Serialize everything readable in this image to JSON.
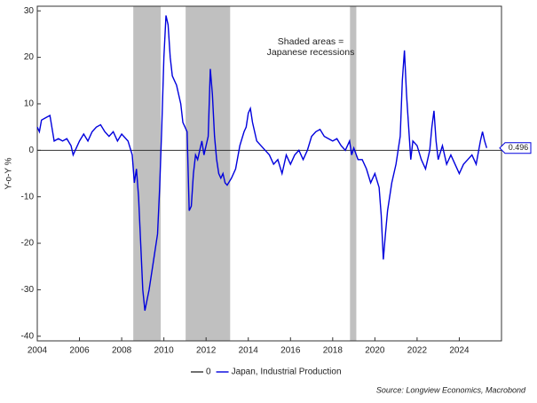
{
  "chart_data": {
    "type": "line",
    "ylabel": "Y-o-Y %",
    "annotation": [
      "Shaded areas =",
      "Japanese recessions"
    ],
    "source": "Source: Longview Economics, Macrobond",
    "shaded_regions": [
      [
        2008.55,
        2009.85
      ],
      [
        2011.03,
        2013.14
      ],
      [
        2018.82,
        2019.12
      ]
    ],
    "shade_color": "#c0c0c0",
    "xlim": [
      2004,
      2026
    ],
    "xticks": [
      2004,
      2006,
      2008,
      2010,
      2012,
      2014,
      2016,
      2018,
      2020,
      2022,
      2024
    ],
    "ylim": [
      -41,
      31
    ],
    "yticks": [
      -40,
      -30,
      -20,
      -10,
      0,
      10,
      20,
      30
    ],
    "series": [
      {
        "name": "0",
        "color": "#333333",
        "x": [
          2004,
          2026
        ],
        "values": [
          0,
          0
        ]
      },
      {
        "name": "Japan, Industrial Production",
        "color": "#0000dd",
        "x": [
          2004.0,
          2004.1,
          2004.2,
          2004.4,
          2004.6,
          2004.8,
          2005.0,
          2005.2,
          2005.4,
          2005.6,
          2005.7,
          2006.0,
          2006.2,
          2006.4,
          2006.6,
          2006.8,
          2007.0,
          2007.2,
          2007.4,
          2007.6,
          2007.8,
          2008.0,
          2008.3,
          2008.5,
          2008.6,
          2008.7,
          2008.8,
          2008.9,
          2009.0,
          2009.1,
          2009.3,
          2009.5,
          2009.7,
          2009.8,
          2009.9,
          2010.0,
          2010.1,
          2010.2,
          2010.3,
          2010.4,
          2010.6,
          2010.8,
          2010.9,
          2011.1,
          2011.2,
          2011.3,
          2011.4,
          2011.5,
          2011.6,
          2011.7,
          2011.8,
          2011.9,
          2012.0,
          2012.1,
          2012.2,
          2012.3,
          2012.4,
          2012.5,
          2012.6,
          2012.7,
          2012.8,
          2012.9,
          2013.0,
          2013.2,
          2013.4,
          2013.6,
          2013.8,
          2013.9,
          2014.0,
          2014.1,
          2014.2,
          2014.4,
          2014.6,
          2014.8,
          2015.0,
          2015.2,
          2015.4,
          2015.6,
          2015.8,
          2016.0,
          2016.2,
          2016.4,
          2016.6,
          2016.8,
          2017.0,
          2017.2,
          2017.4,
          2017.6,
          2017.8,
          2018.0,
          2018.2,
          2018.4,
          2018.6,
          2018.8,
          2018.9,
          2019.0,
          2019.2,
          2019.4,
          2019.6,
          2019.8,
          2020.0,
          2020.2,
          2020.3,
          2020.4,
          2020.5,
          2020.6,
          2020.8,
          2021.0,
          2021.2,
          2021.3,
          2021.4,
          2021.5,
          2021.7,
          2021.8,
          2022.0,
          2022.2,
          2022.4,
          2022.6,
          2022.7,
          2022.8,
          2022.9,
          2023.0,
          2023.2,
          2023.4,
          2023.6,
          2023.8,
          2024.0,
          2024.2,
          2024.4,
          2024.6,
          2024.8,
          2025.0,
          2025.1,
          2025.2,
          2025.3
        ],
        "values": [
          5,
          4,
          6.5,
          7,
          7.5,
          2,
          2.5,
          2,
          2.5,
          1,
          -1,
          2,
          3.5,
          2,
          4,
          5,
          5.5,
          4,
          3,
          4,
          2,
          3.5,
          2,
          -1,
          -7,
          -4,
          -10,
          -20,
          -30,
          -34.5,
          -30,
          -24,
          -18,
          -8,
          5,
          20,
          29,
          27,
          20,
          16,
          14,
          10,
          6,
          4,
          -13,
          -12,
          -5,
          -1,
          -2,
          0,
          2,
          -1,
          1,
          3,
          17.5,
          12,
          3,
          -2,
          -5,
          -6,
          -5,
          -7,
          -7.5,
          -6,
          -4,
          1,
          4,
          5,
          8,
          9,
          6,
          2,
          1,
          0,
          -1,
          -3,
          -2,
          -5,
          -1,
          -3,
          -1,
          0,
          -2,
          0,
          3,
          4,
          4.5,
          3,
          2.5,
          2,
          2.5,
          1,
          0,
          2,
          -1,
          0.5,
          -2,
          -2,
          -4,
          -7,
          -5,
          -8,
          -14,
          -23.5,
          -18,
          -13,
          -7,
          -3,
          3,
          15,
          21.5,
          12,
          -2,
          2,
          1,
          -2,
          -4,
          0,
          5,
          8.5,
          2,
          -2,
          1,
          -3,
          -1,
          -3,
          -5,
          -3,
          -2,
          -1,
          -3,
          2,
          4,
          2,
          0.496
        ]
      }
    ]
  }
}
